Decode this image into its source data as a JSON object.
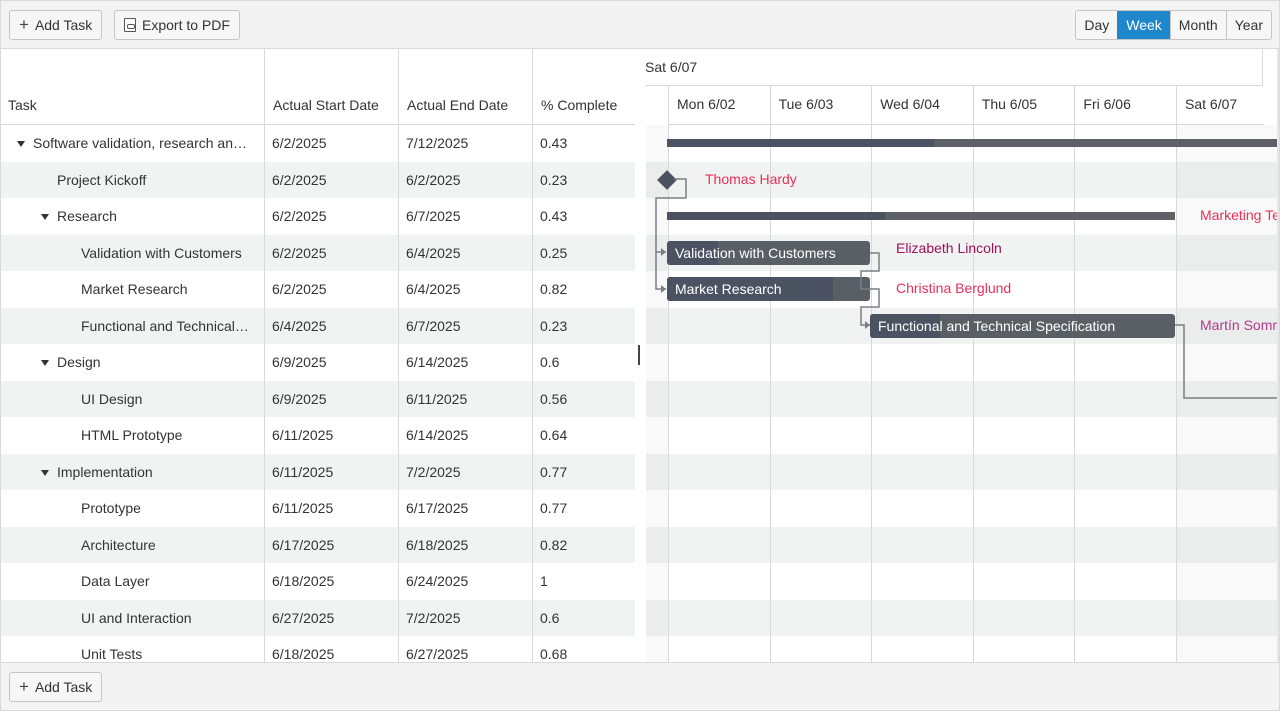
{
  "toolbar": {
    "add_task": "Add Task",
    "export_pdf": "Export to PDF",
    "views": [
      "Day",
      "Week",
      "Month",
      "Year"
    ],
    "active_view": "Week"
  },
  "footer": {
    "add_task": "Add Task"
  },
  "columns": [
    "Task",
    "Actual Start Date",
    "Actual End Date",
    "% Complete"
  ],
  "rows": [
    {
      "title": "Software validation, research and implementation",
      "display_title": "Software validation, research an…",
      "start": "6/2/2025",
      "end": "7/12/2025",
      "pct": "0.43",
      "level": 0,
      "expand": true
    },
    {
      "title": "Project Kickoff",
      "start": "6/2/2025",
      "end": "6/2/2025",
      "pct": "0.23",
      "level": 1,
      "expand": false
    },
    {
      "title": "Research",
      "start": "6/2/2025",
      "end": "6/7/2025",
      "pct": "0.43",
      "level": 1,
      "expand": true
    },
    {
      "title": "Validation with Customers",
      "start": "6/2/2025",
      "end": "6/4/2025",
      "pct": "0.25",
      "level": 2,
      "expand": false
    },
    {
      "title": "Market Research",
      "start": "6/2/2025",
      "end": "6/4/2025",
      "pct": "0.82",
      "level": 2,
      "expand": false
    },
    {
      "title": "Functional and Technical Specification",
      "display_title": "Functional and Technical…",
      "start": "6/4/2025",
      "end": "6/7/2025",
      "pct": "0.23",
      "level": 2,
      "expand": false
    },
    {
      "title": "Design",
      "start": "6/9/2025",
      "end": "6/14/2025",
      "pct": "0.6",
      "level": 1,
      "expand": true
    },
    {
      "title": "UI Design",
      "start": "6/9/2025",
      "end": "6/11/2025",
      "pct": "0.56",
      "level": 2,
      "expand": false
    },
    {
      "title": "HTML Prototype",
      "start": "6/11/2025",
      "end": "6/14/2025",
      "pct": "0.64",
      "level": 2,
      "expand": false
    },
    {
      "title": "Implementation",
      "start": "6/11/2025",
      "end": "7/2/2025",
      "pct": "0.77",
      "level": 1,
      "expand": true
    },
    {
      "title": "Prototype",
      "start": "6/11/2025",
      "end": "6/17/2025",
      "pct": "0.77",
      "level": 2,
      "expand": false
    },
    {
      "title": "Architecture",
      "start": "6/17/2025",
      "end": "6/18/2025",
      "pct": "0.82",
      "level": 2,
      "expand": false
    },
    {
      "title": "Data Layer",
      "start": "6/18/2025",
      "end": "6/24/2025",
      "pct": "1",
      "level": 2,
      "expand": false
    },
    {
      "title": "UI and Interaction",
      "start": "6/27/2025",
      "end": "7/2/2025",
      "pct": "0.6",
      "level": 2,
      "expand": false
    },
    {
      "title": "Unit Tests",
      "start": "6/18/2025",
      "end": "6/27/2025",
      "pct": "0.68",
      "level": 2,
      "expand": false
    }
  ],
  "timeline": {
    "week_label": "Sat 6/07",
    "days": [
      "Mon 6/02",
      "Tue 6/03",
      "Wed 6/04",
      "Thu 6/05",
      "Fri 6/06",
      "Sat 6/07"
    ],
    "bars": [
      {
        "row": 3,
        "label": "Validation with Customers"
      },
      {
        "row": 4,
        "label": "Market Research"
      },
      {
        "row": 5,
        "label": "Functional and Technical Specification"
      }
    ],
    "resources": [
      {
        "row": 1,
        "name": "Thomas Hardy",
        "color": "#e8305a"
      },
      {
        "row": 2,
        "name": "Marketing Te",
        "color": "#e8305a"
      },
      {
        "row": 3,
        "name": "Elizabeth Lincoln",
        "color": "#a0105a"
      },
      {
        "row": 4,
        "name": "Christina Berglund",
        "color": "#e8305a"
      },
      {
        "row": 5,
        "name": "Martín Somm",
        "color": "#b03a8a"
      }
    ]
  },
  "colors": {
    "accent": "#1f87cc",
    "bar": "#5a5f66",
    "bar_progress": "#4b5363",
    "alt_row": "#f1f2f2"
  }
}
